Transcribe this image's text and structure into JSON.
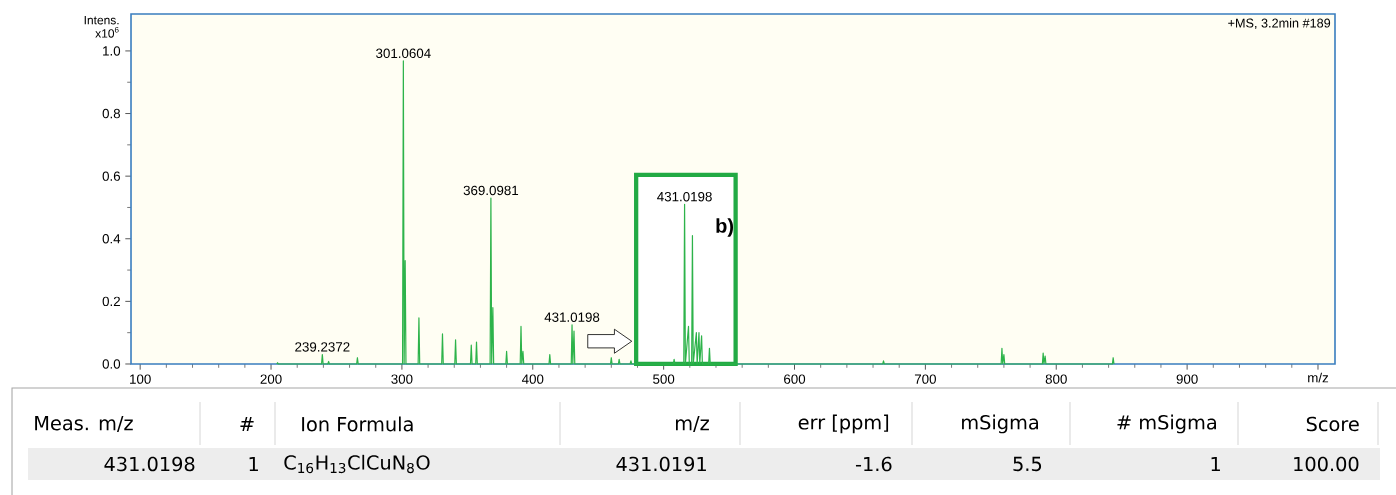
{
  "chart_data": {
    "type": "line",
    "xlabel": "m/z",
    "ylabel": "Intens. x10$^{6}$",
    "xlim": [
      93,
      1013
    ],
    "ylim": [
      0,
      1.118
    ],
    "xticks": [
      100,
      200,
      300,
      400,
      500,
      600,
      700,
      800,
      900,
      {
        "value": 1000,
        "label": null
      }
    ],
    "yticks": [
      {
        "value": 0,
        "label": "0.0"
      },
      {
        "value": 0.2,
        "label": "0.2"
      },
      {
        "value": 0.4,
        "label": "0.4"
      },
      {
        "value": 0.6,
        "label": "0.6"
      },
      {
        "value": 0.8,
        "label": "0.8"
      },
      {
        "value": 1.0,
        "label": "1.0"
      }
    ],
    "grid": false,
    "marker": "none",
    "line_style": "solid",
    "series": [
      {
        "color": "#2db34a",
        "x": [
          204.4,
          205,
          205.6,
          238.6,
          239.2,
          239.8,
          243.4,
          244,
          244.6,
          265.4,
          266,
          266.6,
          300.5,
          301.1,
          301.7,
          302.5,
          303.1,
          312.4,
          313,
          313.6,
          330.4,
          331,
          331.6,
          340.4,
          341,
          341.6,
          352.4,
          353,
          353.6,
          356.4,
          357,
          357.6,
          367.4,
          368,
          368.6,
          369.5,
          370.1,
          379.4,
          380,
          380.6,
          390.4,
          391,
          391.6,
          392.5,
          393.1,
          412.4,
          413,
          413.6,
          429.4,
          430,
          430.6,
          431.5,
          432.1,
          459.4,
          460,
          460.6,
          465.4,
          466,
          466.6,
          474.4,
          475,
          475.6,
          507.4,
          508,
          508.6,
          515.4,
          516,
          516.6,
          519,
          519.6,
          521.4,
          522,
          522.6,
          525,
          525.6,
          527,
          527.6,
          529,
          529.6,
          534.4,
          535,
          535.6,
          667.4,
          668,
          668.6,
          757.9,
          758.5,
          759.1,
          760,
          760.6,
          789.4,
          790,
          790.6,
          791.5,
          792.1,
          842.9,
          843.5,
          844.1
        ],
        "values": [
          0,
          0.004,
          0,
          0,
          0.03,
          0,
          0,
          0.008,
          0,
          0,
          0.02,
          0,
          0,
          0.968,
          0,
          0.33,
          0,
          0,
          0.147,
          0,
          0,
          0.096,
          0,
          0,
          0.077,
          0,
          0,
          0.06,
          0,
          0,
          0.07,
          0,
          0,
          0.53,
          0,
          0.18,
          0,
          0,
          0.04,
          0,
          0,
          0.12,
          0,
          0.04,
          0,
          0,
          0.03,
          0,
          0,
          0.125,
          0,
          0.105,
          0,
          0,
          0.02,
          0,
          0,
          0.015,
          0,
          0,
          0.01,
          0,
          0,
          0.015,
          0,
          0,
          0.51,
          0,
          0.12,
          0,
          0,
          0.41,
          0,
          0.1,
          0,
          0.1,
          0,
          0.09,
          0,
          0,
          0.05,
          0,
          0,
          0.01,
          0,
          0,
          0.05,
          0,
          0.03,
          0,
          0,
          0.035,
          0,
          0.025,
          0,
          0,
          0.02,
          0
        ]
      }
    ],
    "bands": [
      {
        "axis": "x",
        "from": 479,
        "to": 555,
        "label": "b)",
        "color": "#22aa44"
      }
    ],
    "annotations": [
      {
        "text": "239.2372",
        "x": 239.2,
        "y": 0.03
      },
      {
        "text": "301.0604",
        "x": 301.1,
        "y": 0.968
      },
      {
        "text": "369.0981",
        "x": 368,
        "y": 0.53
      },
      {
        "text": "431.0198",
        "x": 430,
        "y": 0.125
      },
      {
        "text": "431.0198",
        "x": 516,
        "y": 0.51
      },
      "+MS, 3.2min #189",
      "Meas. m/z",
      "#",
      "Ion Formula",
      "m/z",
      "err [ppm]",
      "mSigma",
      "# mSigma",
      "Score",
      "431.0198",
      "1",
      "C$_{16}$H$_{13}$ClCuN$_{8}$O",
      "431.0191",
      "-1.6",
      "5.5",
      "1",
      "100.00"
    ]
  }
}
